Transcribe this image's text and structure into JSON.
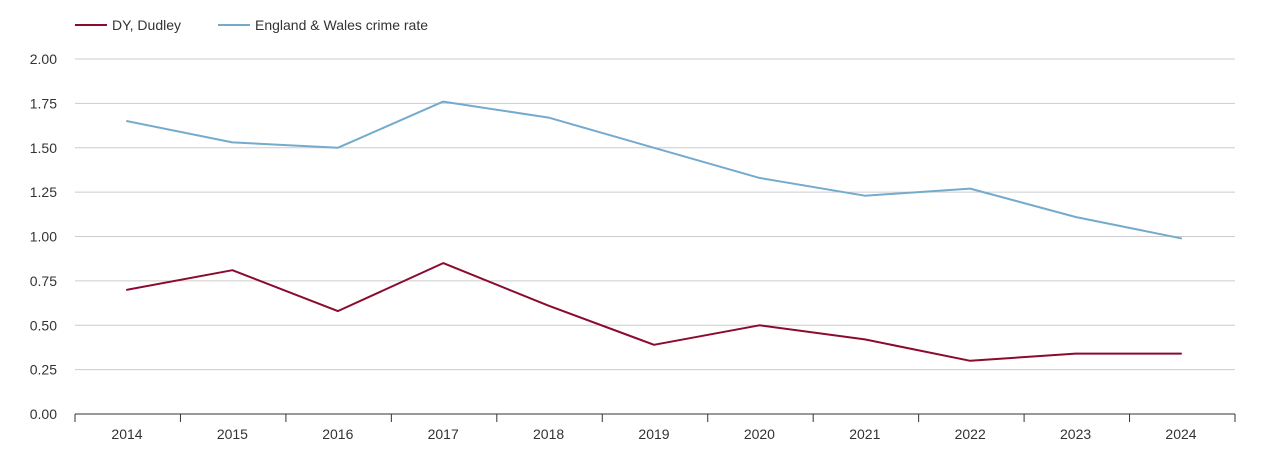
{
  "chart_data": {
    "type": "line",
    "title": "",
    "xlabel": "",
    "ylabel": "",
    "categories": [
      "2014",
      "2015",
      "2016",
      "2017",
      "2018",
      "2019",
      "2020",
      "2021",
      "2022",
      "2023",
      "2024"
    ],
    "ylim": [
      0,
      2
    ],
    "yticks": [
      "0.00",
      "0.25",
      "0.50",
      "0.75",
      "1.00",
      "1.25",
      "1.50",
      "1.75",
      "2.00"
    ],
    "grid": true,
    "legend_position": "top-left",
    "series": [
      {
        "name": "DY, Dudley",
        "color": "#8b0a2e",
        "values": [
          0.7,
          0.81,
          0.58,
          0.85,
          0.61,
          0.39,
          0.5,
          0.42,
          0.3,
          0.34,
          0.34
        ]
      },
      {
        "name": "England & Wales crime rate",
        "color": "#74abcd",
        "values": [
          1.65,
          1.53,
          1.5,
          1.76,
          1.67,
          1.5,
          1.33,
          1.23,
          1.27,
          1.11,
          0.99
        ]
      }
    ]
  }
}
